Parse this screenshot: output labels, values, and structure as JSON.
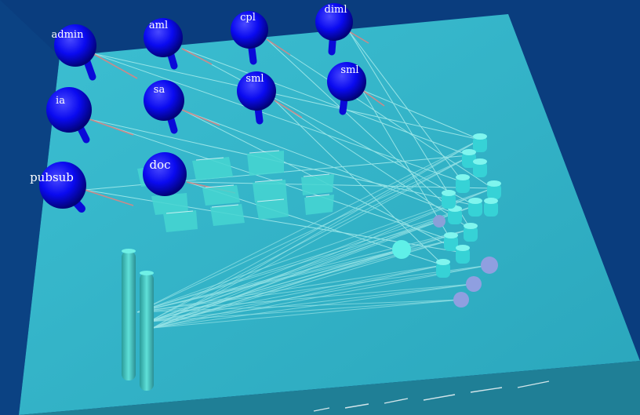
{
  "colors": {
    "background": "#0a3d7e",
    "plane": "#36b3c8",
    "sphere": "#0a0af0",
    "cyan_shape": "#3fe0e0",
    "link": "#9fe8e8",
    "link_hot": "#c98a8a"
  },
  "spheres": [
    {
      "id": "admin",
      "label": "admin"
    },
    {
      "id": "aml",
      "label": "aml"
    },
    {
      "id": "cpl",
      "label": "cpl"
    },
    {
      "id": "diml",
      "label": "diml"
    },
    {
      "id": "ia",
      "label": "ia"
    },
    {
      "id": "sa",
      "label": "sa"
    },
    {
      "id": "sml1",
      "label": "sml"
    },
    {
      "id": "sml2",
      "label": "sml"
    },
    {
      "id": "pubsub",
      "label": "pubsub"
    },
    {
      "id": "doc",
      "label": "doc"
    }
  ]
}
